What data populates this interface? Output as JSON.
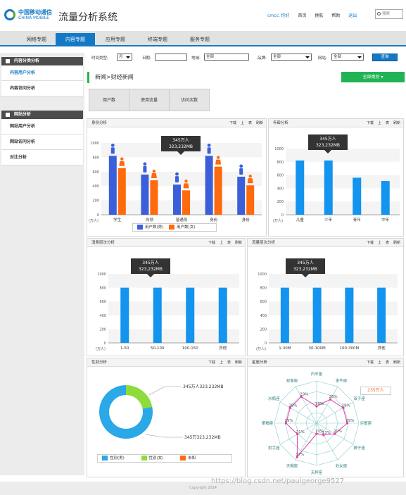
{
  "header": {
    "logo_cn": "中国移动通信",
    "logo_en": "CHINA MOBILE",
    "title": "流量分析系统",
    "user_link": "cmcc, 你好",
    "links": [
      "首页",
      "换肤",
      "帮助"
    ],
    "exit": "退出",
    "search_placeholder": "搜索"
  },
  "nav": {
    "tabs": [
      {
        "label": "网络专题",
        "active": false
      },
      {
        "label": "内容专题",
        "active": true
      },
      {
        "label": "应用专题",
        "active": false
      },
      {
        "label": "终端专题",
        "active": false
      },
      {
        "label": "服务专题",
        "active": false
      }
    ]
  },
  "sidebar": {
    "groups": [
      {
        "title": "内容分类分析",
        "items": [
          {
            "label": "内容用户分析",
            "active": true
          },
          {
            "label": "内容访问分析",
            "active": false
          }
        ]
      },
      {
        "title": "网站分析",
        "items": [
          {
            "label": "网站用户分析",
            "active": false
          },
          {
            "label": "网站访问分析",
            "active": false
          },
          {
            "label": "对比分析",
            "active": false
          }
        ]
      }
    ]
  },
  "filters": {
    "time_type_label": "时间类型:",
    "time_type_value": "月",
    "date_label": "日期:",
    "date_value": "",
    "region_label": "地域:",
    "region_value": "全部",
    "brand_label": "品牌:",
    "brand_value": "全部",
    "site_label": "网站:",
    "site_value": "全部",
    "query_button": "查询"
  },
  "breadcrumb": "新闻>财经新闻",
  "export_button": "全部类别 ▾",
  "subtabs": [
    "用户数",
    "使用流量",
    "访问次数"
  ],
  "panels": {
    "identity": {
      "title": "身份分析",
      "tools": [
        "下载",
        "上",
        "表",
        "刷新"
      ],
      "tooltip_line1": "345万人",
      "tooltip_line2": "323,232MB",
      "y_unit": "(万人)",
      "y_ticks": [
        0,
        200,
        400,
        600,
        800,
        1000
      ],
      "categories": [
        "学生",
        "白领",
        "普通员",
        "身份",
        "身份"
      ],
      "legend": [
        "用户数(男)",
        "用户数(女)"
      ],
      "colors": [
        "#3b5fd8",
        "#ff6a0d"
      ],
      "male": [
        820,
        560,
        420,
        820,
        530
      ],
      "female": [
        650,
        480,
        340,
        670,
        410
      ]
    },
    "age": {
      "title": "年龄分析",
      "tools": [
        "下载",
        "上",
        "表",
        "刷新"
      ],
      "tooltip_line1": "345万人",
      "tooltip_line2": "323,232MB",
      "y_unit": "(万人)",
      "y_ticks": [
        0,
        200,
        400,
        600,
        800,
        1000
      ],
      "categories": [
        "儿童",
        "少年",
        "青年",
        "中年"
      ],
      "values": [
        820,
        820,
        560,
        510
      ],
      "color": "#1294ef"
    },
    "consume": {
      "title": "消费层次分析",
      "tools": [
        "下载",
        "上",
        "表",
        "刷新"
      ],
      "tooltip_line1": "345万人",
      "tooltip_line2": "323,232MB",
      "y_unit": "(万人)",
      "y_ticks": [
        0,
        200,
        400,
        600,
        800,
        1000
      ],
      "categories": [
        "1-50",
        "50-100",
        "100-150",
        "其他"
      ],
      "values": [
        800,
        800,
        800,
        800
      ],
      "color": "#1294ef"
    },
    "traffic": {
      "title": "流量层次分析",
      "tools": [
        "下载",
        "上",
        "表",
        "刷新"
      ],
      "tooltip_line1": "345万人",
      "tooltip_line2": "323,232MB",
      "y_unit": "(万人)",
      "y_ticks": [
        0,
        200,
        400,
        600,
        800,
        1000
      ],
      "categories": [
        "1-30M",
        "30-100M",
        "100-300M",
        "其他"
      ],
      "values": [
        800,
        800,
        800,
        800
      ],
      "color": "#1294ef"
    },
    "gender": {
      "title": "性别分析",
      "tools": [
        "下载",
        "上",
        "表",
        "刷新"
      ],
      "label_top": "345万人323,232MB",
      "label_bottom": "345万323,232MB",
      "legend": [
        "性别(男)",
        "性别(女)",
        "未知"
      ],
      "colors": [
        "#2aa8e8",
        "#8edc3c",
        "#ff6a0d"
      ],
      "values": [
        78,
        22,
        0
      ]
    },
    "zodiac": {
      "title": "星座分析",
      "tools": [
        "下载",
        "上",
        "表",
        "刷新"
      ],
      "signs": [
        "白羊座",
        "金牛座",
        "双子座",
        "巨蟹座",
        "狮子座",
        "处女座",
        "天秤座",
        "天蝎座",
        "射手座",
        "摩羯座",
        "水瓶座",
        "双鱼座"
      ],
      "values": [
        16,
        26,
        29,
        29,
        20,
        13,
        10,
        37,
        21,
        29,
        29,
        29
      ],
      "value_labels": [
        "16%",
        "26%",
        "29%",
        "29%",
        "20%",
        "13%",
        "10%",
        "37%",
        "21%",
        "29%",
        "29%",
        "29%"
      ],
      "tooltip": "235万人",
      "color": "#e23da7"
    }
  },
  "footer": "Copyright 2014",
  "watermark": "https://blog.csdn.net/paulgeorge9527"
}
